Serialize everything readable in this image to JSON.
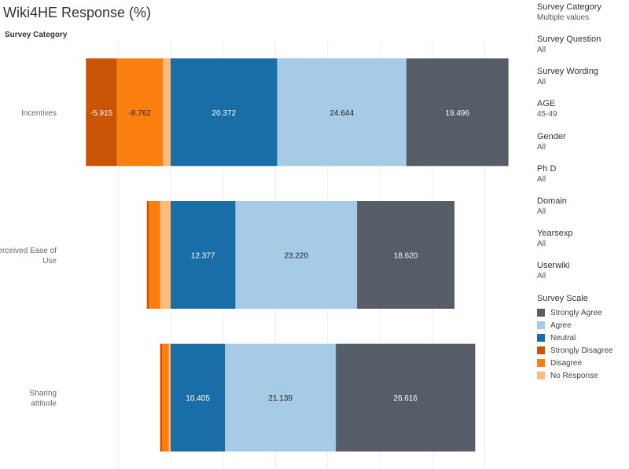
{
  "title": "Wiki4HE Response (%)",
  "category_header": "Survey Category",
  "filters": [
    {
      "label": "Survey Category",
      "value": "Multiple values"
    },
    {
      "label": "Survey Question",
      "value": "All"
    },
    {
      "label": "Survey Wording",
      "value": "All"
    },
    {
      "label": "AGE",
      "value": "45-49"
    },
    {
      "label": "Gender",
      "value": "All"
    },
    {
      "label": "Ph D",
      "value": "All"
    },
    {
      "label": "Domain",
      "value": "All"
    },
    {
      "label": "Yearsexp",
      "value": "All"
    },
    {
      "label": "Userwiki",
      "value": "All"
    }
  ],
  "legend": {
    "title": "Survey Scale",
    "items": [
      {
        "name": "Strongly Agree",
        "color": "#565d69"
      },
      {
        "name": "Agree",
        "color": "#a5cbe7"
      },
      {
        "name": "Neutral",
        "color": "#1a6ea8"
      },
      {
        "name": "Strongly Disagree",
        "color": "#c95406"
      },
      {
        "name": "Disagree",
        "color": "#fb7f0f"
      },
      {
        "name": "No Response",
        "color": "#fdbc7d"
      }
    ]
  },
  "chart_data": {
    "type": "bar",
    "orientation": "horizontal",
    "stacked": "diverging",
    "categories": [
      "Incentives",
      "Perceived Ease of Use",
      "Sharing attitude"
    ],
    "series": [
      {
        "name": "No Response",
        "color": "#fdbc7d",
        "values": [
          -1.5,
          -2.0,
          -0.35
        ]
      },
      {
        "name": "Disagree",
        "color": "#fb7f0f",
        "values": [
          -8.762,
          -2.1,
          -1.3
        ]
      },
      {
        "name": "Strongly Disagree",
        "color": "#c95406",
        "values": [
          -5.915,
          -0.45,
          -0.35
        ]
      },
      {
        "name": "Neutral",
        "color": "#1a6ea8",
        "values": [
          20.372,
          12.377,
          10.405
        ]
      },
      {
        "name": "Agree",
        "color": "#a5cbe7",
        "values": [
          24.644,
          23.22,
          21.139
        ]
      },
      {
        "name": "Strongly Agree",
        "color": "#565d69",
        "values": [
          19.496,
          18.62,
          26.616
        ]
      }
    ],
    "labels": [
      [
        "",
        "-8.762",
        "-5.915",
        "20.372",
        "24.644",
        "19.496"
      ],
      [
        "",
        "",
        "",
        "12.377",
        "23.220",
        "18.620"
      ],
      [
        "",
        "",
        "",
        "10.405",
        "21.139",
        "26.616"
      ]
    ],
    "xlim": [
      -17.5,
      69.5
    ],
    "grid": true,
    "legend_position": "right"
  }
}
